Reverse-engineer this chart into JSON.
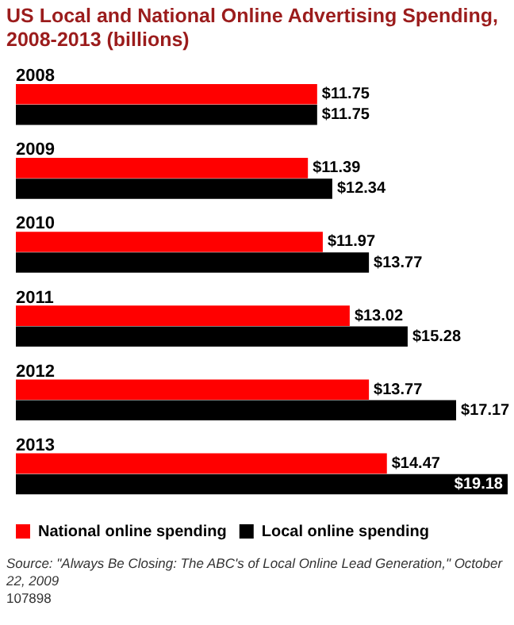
{
  "chart_data": {
    "type": "bar",
    "orientation": "horizontal",
    "title": "US Local and National Online Advertising Spending, 2008-2013 (billions)",
    "categories": [
      "2008",
      "2009",
      "2010",
      "2011",
      "2012",
      "2013"
    ],
    "series": [
      {
        "name": "National online spending",
        "color": "#ff0000",
        "values": [
          11.75,
          11.39,
          11.97,
          13.02,
          13.77,
          14.47
        ],
        "value_labels": [
          "$11.75",
          "$11.39",
          "$11.97",
          "$13.02",
          "$13.77",
          "$14.47"
        ]
      },
      {
        "name": "Local online spending",
        "color": "#000000",
        "values": [
          11.75,
          12.34,
          13.77,
          15.28,
          17.17,
          19.18
        ],
        "value_labels": [
          "$11.75",
          "$12.34",
          "$13.77",
          "$15.28",
          "$17.17",
          "$19.18"
        ]
      }
    ],
    "legend": "bottom left",
    "annotations": [
      "Source: \"Always Be Closing: The ABC's of Local Online Lead Generation,\" October 22, 2009",
      "107898"
    ]
  }
}
